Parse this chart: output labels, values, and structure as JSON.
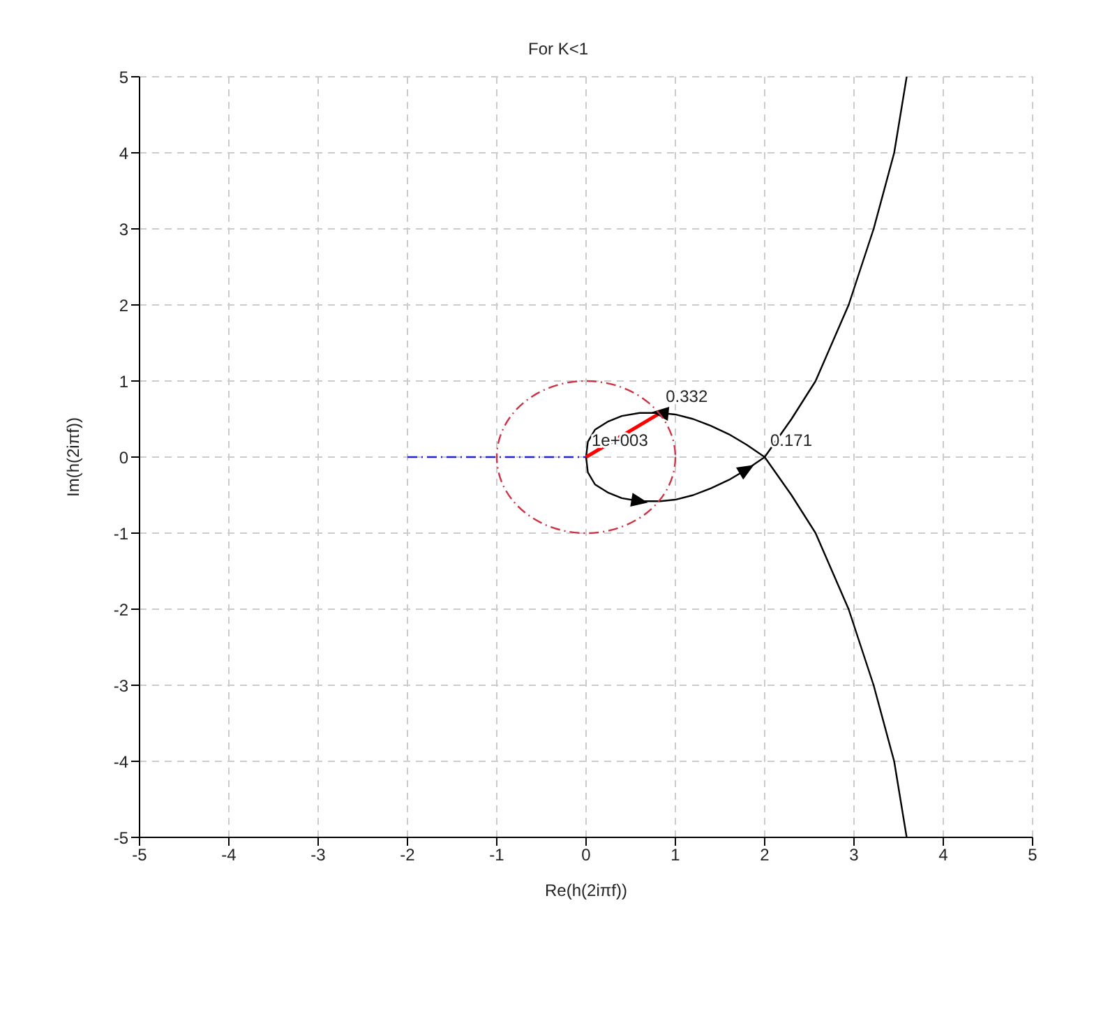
{
  "chart_data": {
    "type": "line",
    "title": "For K<1",
    "xlabel": "Re(h(2iπf))",
    "ylabel": "Im(h(2iπf))",
    "xlim": [
      -5,
      5
    ],
    "ylim": [
      -5,
      5
    ],
    "xticks": [
      -5,
      -4,
      -3,
      -2,
      -1,
      0,
      1,
      2,
      3,
      4,
      5
    ],
    "yticks": [
      -5,
      -4,
      -3,
      -2,
      -1,
      0,
      1,
      2,
      3,
      4,
      5
    ],
    "grid": true,
    "marker": "none",
    "series": [
      {
        "color": "#000000",
        "line_style": "solid",
        "x": [
          3.59,
          3.45,
          3.22,
          2.94,
          2.57,
          2.3,
          2.0,
          1.8,
          1.6,
          1.4,
          1.2,
          1.0,
          0.83,
          0.6,
          0.4,
          0.25,
          0.1,
          0.02,
          0.0,
          0.02,
          0.1,
          0.25,
          0.4,
          0.6,
          0.83,
          1.0,
          1.2,
          1.4,
          1.6,
          1.8,
          2.0,
          2.3,
          2.57,
          2.94,
          3.22,
          3.45,
          3.59
        ],
        "values": [
          5,
          4,
          3,
          2,
          1,
          0.5,
          0,
          0.16,
          0.3,
          0.41,
          0.5,
          0.56,
          0.58,
          0.58,
          0.54,
          0.47,
          0.36,
          0.2,
          0,
          -0.2,
          -0.36,
          -0.47,
          -0.54,
          -0.58,
          -0.58,
          -0.56,
          -0.5,
          -0.41,
          -0.3,
          -0.16,
          0,
          -0.5,
          -1,
          -2,
          -3,
          -4,
          -5
        ]
      },
      {
        "color": "#2222cc",
        "line_style": "dashed",
        "x": [
          -2,
          0
        ],
        "values": [
          0,
          0
        ]
      },
      {
        "color": "#ff0000",
        "line_style": "solid",
        "x": [
          0,
          0.83
        ],
        "values": [
          0,
          0.58
        ]
      }
    ],
    "annotations": [
      {
        "text": "0.332",
        "x": 0.83,
        "y": 0.58
      },
      {
        "text": "0.171",
        "x": 2.0,
        "y": 0
      },
      {
        "text": "1e+003",
        "x": 0,
        "y": 0
      }
    ]
  }
}
